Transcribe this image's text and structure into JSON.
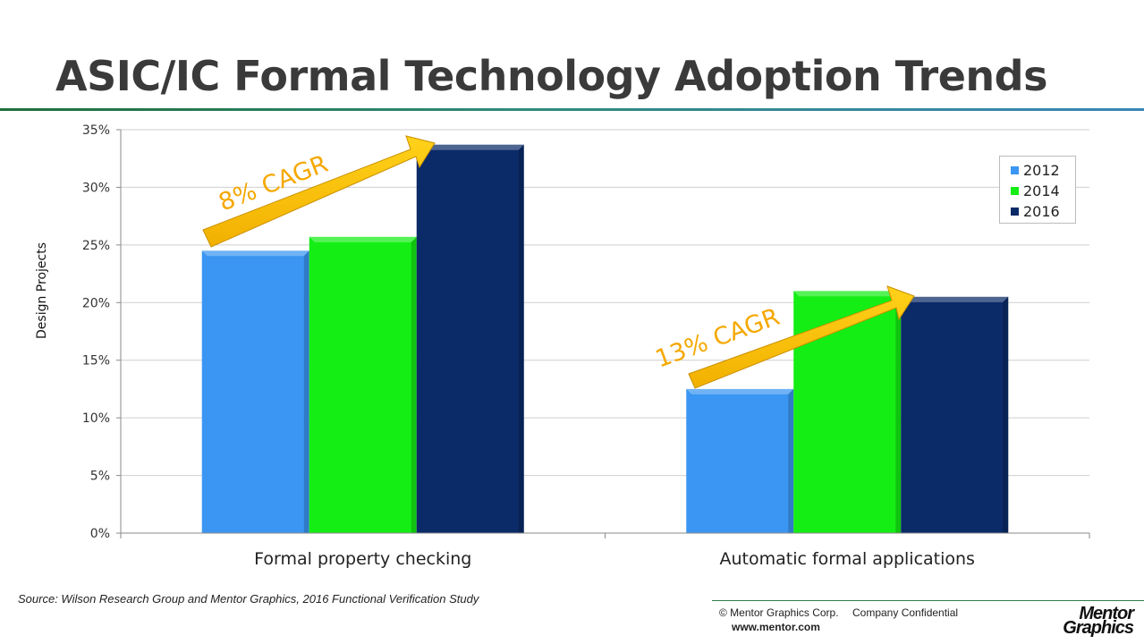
{
  "title": "ASIC/IC Formal Technology Adoption Trends",
  "chart_data": {
    "type": "bar",
    "categories": [
      "Formal property checking",
      "Automatic formal applications"
    ],
    "series": [
      {
        "name": "2012",
        "color": "#3a96f2",
        "values": [
          24.5,
          12.5
        ]
      },
      {
        "name": "2014",
        "color": "#14ee14",
        "values": [
          25.7,
          21.0
        ]
      },
      {
        "name": "2016",
        "color": "#0b2a68",
        "values": [
          33.7,
          20.5
        ]
      }
    ],
    "ylabel": "Design Projects",
    "ylim": [
      0,
      35
    ],
    "yticks": [
      "0%",
      "5%",
      "10%",
      "15%",
      "20%",
      "25%",
      "30%",
      "35%"
    ],
    "ytick_values": [
      0,
      5,
      10,
      15,
      20,
      25,
      30,
      35
    ],
    "grid": true,
    "legend_position": "top-right",
    "annotations": [
      {
        "text": "8% CAGR",
        "color": "#f5a800"
      },
      {
        "text": "13% CAGR",
        "color": "#f5a800"
      }
    ]
  },
  "source": "Source:  Wilson Research Group and Mentor Graphics, 2016 Functional Verification Study",
  "footer": {
    "copyright": "© Mentor Graphics Corp.",
    "confidential": "Company Confidential",
    "website": "www.mentor.com",
    "logo_line1": "Mentor",
    "logo_line2": "Graphics"
  }
}
